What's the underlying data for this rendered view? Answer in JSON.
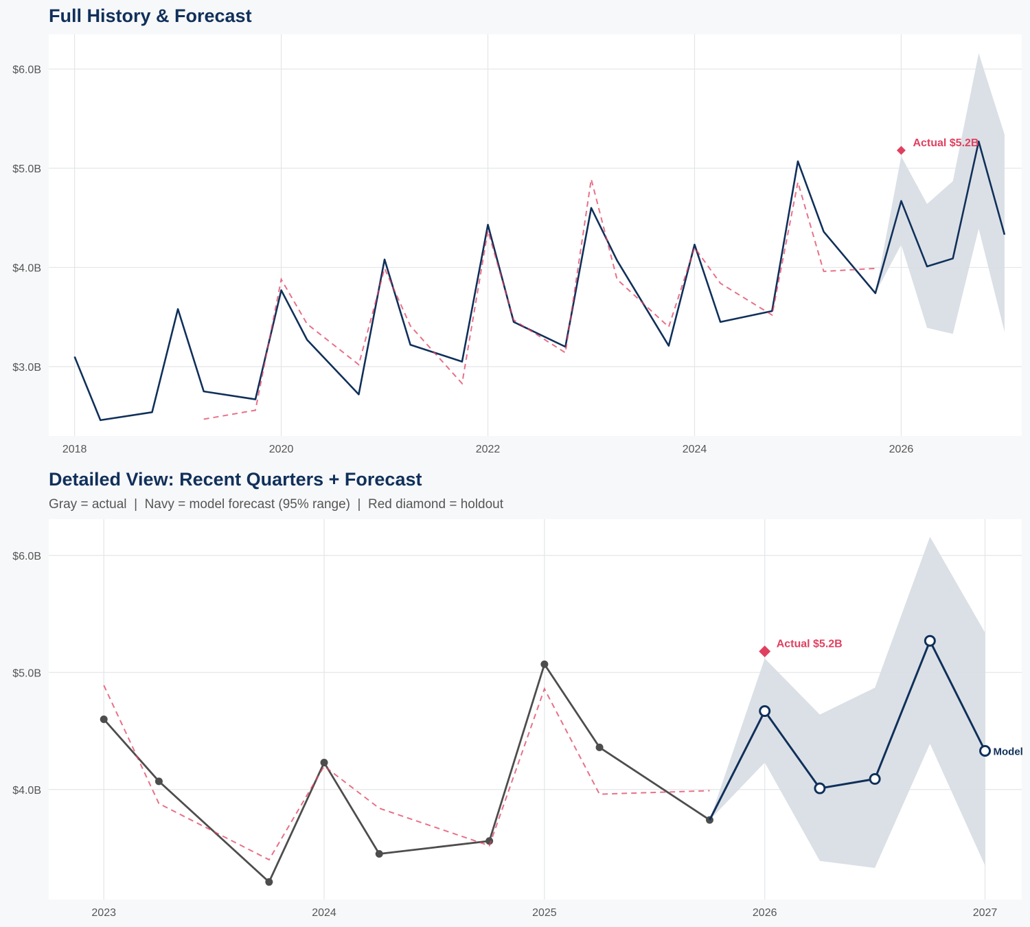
{
  "colors": {
    "navy": "#10305a",
    "gray": "#4d4d4d",
    "red": "#e0405f",
    "band": "#d9dee5",
    "grid": "#e3e5e8",
    "panel_bg": "#ffffff",
    "page_bg": "#f7f8fa"
  },
  "chart_data": [
    {
      "type": "line",
      "title": "Full History & Forecast",
      "subtitle": "",
      "xlabel": "",
      "ylabel": "",
      "x_ticks": [
        "2018",
        "2020",
        "2022",
        "2024",
        "2026"
      ],
      "y_ticks": [
        "$3.0B",
        "$4.0B",
        "$5.0B",
        "$6.0B"
      ],
      "xlim": [
        "2017-10",
        "2027-03"
      ],
      "ylim": [
        2.3,
        6.35
      ],
      "grid": true,
      "series": [
        {
          "style": "navy-solid",
          "x": [
            "2018-01",
            "2018-04",
            "2018-10",
            "2019-01",
            "2019-04",
            "2019-10",
            "2020-01",
            "2020-04",
            "2020-10",
            "2021-01",
            "2021-04",
            "2021-10",
            "2022-01",
            "2022-04",
            "2022-10",
            "2023-01",
            "2023-04",
            "2023-10",
            "2024-01",
            "2024-04",
            "2024-10",
            "2025-01",
            "2025-04",
            "2025-10",
            "2026-01",
            "2026-04",
            "2026-07",
            "2026-10",
            "2027-01"
          ],
          "values": [
            3.1,
            2.46,
            2.54,
            3.58,
            2.75,
            2.67,
            3.77,
            3.27,
            2.72,
            4.08,
            3.22,
            3.05,
            4.43,
            3.45,
            3.2,
            4.6,
            4.07,
            3.21,
            4.23,
            3.45,
            3.56,
            5.07,
            4.36,
            3.74,
            4.67,
            4.01,
            4.09,
            5.27,
            4.33
          ]
        },
        {
          "style": "red-dashed",
          "x": [
            "2019-04",
            "2019-10",
            "2020-01",
            "2020-04",
            "2020-10",
            "2021-01",
            "2021-04",
            "2021-10",
            "2022-01",
            "2022-04",
            "2022-10",
            "2023-01",
            "2023-04",
            "2023-10",
            "2024-01",
            "2024-04",
            "2024-10",
            "2025-01",
            "2025-04",
            "2025-10"
          ],
          "values": [
            2.47,
            2.56,
            3.88,
            3.43,
            3.02,
            3.99,
            3.41,
            2.83,
            4.37,
            3.47,
            3.14,
            4.89,
            3.88,
            3.4,
            4.2,
            3.84,
            3.52,
            4.86,
            3.96,
            3.99
          ]
        },
        {
          "style": "forecast-band",
          "x": [
            "2025-10",
            "2026-01",
            "2026-04",
            "2026-07",
            "2026-10",
            "2027-01"
          ],
          "lower": [
            3.74,
            4.23,
            3.39,
            3.33,
            4.39,
            3.35
          ],
          "upper": [
            3.74,
            5.12,
            4.64,
            4.87,
            6.16,
            5.34
          ]
        }
      ],
      "annotations": [
        {
          "x": "2026-01",
          "y": 5.18,
          "marker": "diamond",
          "text": "Actual $5.2B"
        }
      ]
    },
    {
      "type": "line",
      "title": "Detailed View: Recent Quarters + Forecast",
      "subtitle": "Gray = actual  |  Navy = model forecast (95% range)  |  Red diamond = holdout",
      "xlabel": "",
      "ylabel": "",
      "x_ticks": [
        "2023",
        "2024",
        "2025",
        "2026",
        "2027"
      ],
      "y_ticks": [
        "$4.0B",
        "$5.0B",
        "$6.0B"
      ],
      "xlim": [
        "2022-10",
        "2027-03"
      ],
      "ylim": [
        3.06,
        6.31
      ],
      "grid": true,
      "series": [
        {
          "style": "gray-solid-dots",
          "x": [
            "2023-01",
            "2023-04",
            "2023-10",
            "2024-01",
            "2024-04",
            "2024-10",
            "2025-01",
            "2025-04",
            "2025-10"
          ],
          "values": [
            4.6,
            4.07,
            3.21,
            4.23,
            3.45,
            3.56,
            5.07,
            4.36,
            3.74
          ]
        },
        {
          "style": "red-dashed",
          "x": [
            "2023-01",
            "2023-04",
            "2023-10",
            "2024-01",
            "2024-04",
            "2024-10",
            "2025-01",
            "2025-04",
            "2025-10"
          ],
          "values": [
            4.89,
            3.88,
            3.4,
            4.2,
            3.84,
            3.52,
            4.86,
            3.96,
            3.99
          ]
        },
        {
          "style": "navy-solid-open-circles",
          "name": "Model",
          "x": [
            "2025-10",
            "2026-01",
            "2026-04",
            "2026-07",
            "2026-10",
            "2027-01"
          ],
          "values": [
            3.74,
            4.67,
            4.01,
            4.09,
            5.27,
            4.33
          ]
        },
        {
          "style": "forecast-band",
          "x": [
            "2025-10",
            "2026-01",
            "2026-04",
            "2026-07",
            "2026-10",
            "2027-01"
          ],
          "lower": [
            3.74,
            4.23,
            3.39,
            3.33,
            4.39,
            3.35
          ],
          "upper": [
            3.74,
            5.12,
            4.64,
            4.87,
            6.16,
            5.34
          ]
        }
      ],
      "annotations": [
        {
          "x": "2026-01",
          "y": 5.18,
          "marker": "diamond",
          "text": "Actual $5.2B"
        }
      ]
    }
  ]
}
